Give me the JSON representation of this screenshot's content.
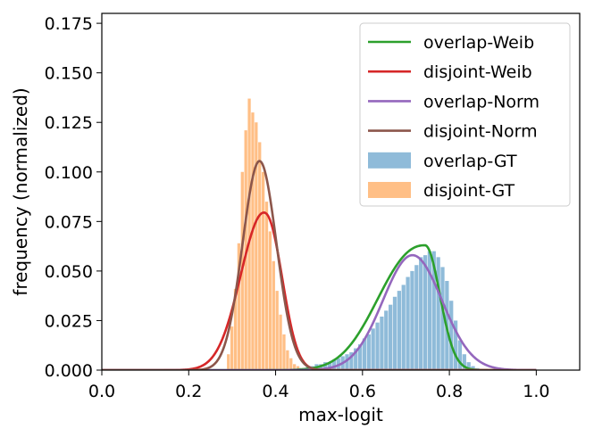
{
  "chart_data": {
    "type": "histogram+line",
    "xlabel": "max-logit",
    "ylabel": "frequency (normalized)",
    "xlim": [
      0.0,
      1.1
    ],
    "ylim": [
      0.0,
      0.18
    ],
    "xticks": [
      0.0,
      0.2,
      0.4,
      0.6,
      0.8,
      1.0
    ],
    "xtick_labels": [
      "0.0",
      "0.2",
      "0.4",
      "0.6",
      "0.8",
      "1.0"
    ],
    "yticks": [
      0.0,
      0.025,
      0.05,
      0.075,
      0.1,
      0.125,
      0.15,
      0.175
    ],
    "ytick_labels": [
      "0.000",
      "0.025",
      "0.050",
      "0.075",
      "0.100",
      "0.125",
      "0.150",
      "0.175"
    ],
    "legend_position": "top-right",
    "curves": [
      {
        "name": "overlap-Weib",
        "color": "#2ca02c",
        "dist": "weibull",
        "x_min": 0.0,
        "x_max": 1.0,
        "mode": 0.744,
        "peak": 0.063,
        "left_scale": 0.14,
        "right_scale": 0.048,
        "left_power": 2.3,
        "right_power": 2.0
      },
      {
        "name": "disjoint-Weib",
        "color": "#d62728",
        "dist": "weibull",
        "x_min": 0.0,
        "x_max": 1.0,
        "mode": 0.373,
        "peak": 0.0795,
        "left_scale": 0.075,
        "right_scale": 0.056,
        "left_power": 2.0,
        "right_power": 2.2
      },
      {
        "name": "overlap-Norm",
        "color": "#9467bd",
        "dist": "normal",
        "x_min": 0.0,
        "x_max": 1.0,
        "mean": 0.715,
        "sd": 0.068,
        "peak": 0.058
      },
      {
        "name": "disjoint-Norm",
        "color": "#8c564b",
        "dist": "normal",
        "x_min": 0.0,
        "x_max": 1.0,
        "mean": 0.363,
        "sd": 0.039,
        "peak": 0.1055
      }
    ],
    "histograms": [
      {
        "name": "overlap-GT",
        "color": "#1f77b4",
        "bin_width": 0.01,
        "bin_starts": [
          0.45,
          0.46,
          0.47,
          0.48,
          0.49,
          0.5,
          0.51,
          0.52,
          0.53,
          0.54,
          0.55,
          0.56,
          0.57,
          0.58,
          0.59,
          0.6,
          0.61,
          0.62,
          0.63,
          0.64,
          0.65,
          0.66,
          0.67,
          0.68,
          0.69,
          0.7,
          0.71,
          0.72,
          0.73,
          0.74,
          0.75,
          0.76,
          0.77,
          0.78,
          0.79,
          0.8,
          0.81,
          0.82,
          0.83,
          0.84,
          0.85,
          0.86
        ],
        "values": [
          0.001,
          0.001,
          0.002,
          0.002,
          0.003,
          0.003,
          0.004,
          0.004,
          0.005,
          0.006,
          0.007,
          0.008,
          0.009,
          0.011,
          0.013,
          0.016,
          0.018,
          0.021,
          0.024,
          0.027,
          0.03,
          0.033,
          0.037,
          0.04,
          0.043,
          0.047,
          0.05,
          0.053,
          0.057,
          0.058,
          0.06,
          0.06,
          0.057,
          0.052,
          0.045,
          0.035,
          0.025,
          0.015,
          0.008,
          0.004,
          0.002,
          0.001
        ]
      },
      {
        "name": "disjoint-GT",
        "color": "#ff7f0e",
        "bin_width": 0.008,
        "bin_starts": [
          0.288,
          0.296,
          0.304,
          0.312,
          0.32,
          0.328,
          0.336,
          0.344,
          0.352,
          0.36,
          0.368,
          0.376,
          0.384,
          0.392,
          0.4,
          0.408,
          0.416,
          0.424,
          0.432,
          0.44,
          0.448,
          0.456
        ],
        "values": [
          0.008,
          0.022,
          0.041,
          0.064,
          0.1,
          0.121,
          0.137,
          0.13,
          0.125,
          0.115,
          0.1,
          0.085,
          0.07,
          0.055,
          0.04,
          0.028,
          0.018,
          0.01,
          0.006,
          0.003,
          0.002,
          0.001
        ]
      }
    ]
  }
}
